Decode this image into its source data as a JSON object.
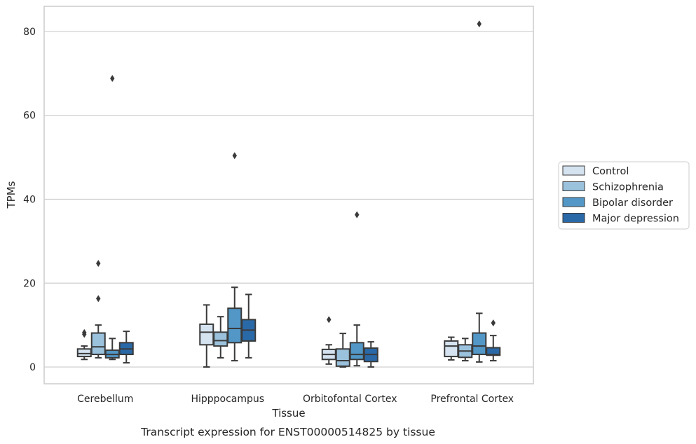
{
  "chart_data": {
    "type": "box",
    "xlabel": "Tissue",
    "ylabel": "TPMs",
    "caption": "Transcript expression for ENST00000514825 by tissue",
    "ylim": [
      -4,
      86
    ],
    "yticks": [
      0,
      20,
      40,
      60,
      80
    ],
    "grid": "horizontal",
    "legend_position": "right",
    "categories": [
      "Cerebellum",
      "Hipppocampus",
      "Orbitofontal Cortex",
      "Prefrontal Cortex"
    ],
    "series": [
      {
        "name": "Control",
        "color": "#d5e3f0",
        "boxes": [
          {
            "whislo": 1.8,
            "q1": 2.5,
            "med": 3.2,
            "q3": 4.3,
            "whishi": 5.0,
            "fliers": [
              7.8,
              8.2
            ]
          },
          {
            "whislo": 0.0,
            "q1": 5.3,
            "med": 8.3,
            "q3": 10.2,
            "whishi": 14.8,
            "fliers": []
          },
          {
            "whislo": 0.7,
            "q1": 1.8,
            "med": 3.0,
            "q3": 4.2,
            "whishi": 5.3,
            "fliers": [
              11.3
            ]
          },
          {
            "whislo": 1.7,
            "q1": 2.5,
            "med": 5.0,
            "q3": 6.2,
            "whishi": 7.1,
            "fliers": []
          }
        ]
      },
      {
        "name": "Schizophrenia",
        "color": "#9bc2dd",
        "boxes": [
          {
            "whislo": 2.2,
            "q1": 3.0,
            "med": 4.8,
            "q3": 8.1,
            "whishi": 10.0,
            "fliers": [
              16.3,
              24.7
            ]
          },
          {
            "whislo": 2.2,
            "q1": 5.0,
            "med": 6.3,
            "q3": 8.3,
            "whishi": 12.0,
            "fliers": []
          },
          {
            "whislo": 0.0,
            "q1": 0.2,
            "med": 1.5,
            "q3": 4.3,
            "whishi": 8.0,
            "fliers": []
          },
          {
            "whislo": 1.5,
            "q1": 2.3,
            "med": 3.8,
            "q3": 5.3,
            "whishi": 6.8,
            "fliers": []
          }
        ]
      },
      {
        "name": "Bipolar disorder",
        "color": "#5297c6",
        "boxes": [
          {
            "whislo": 1.8,
            "q1": 2.2,
            "med": 3.0,
            "q3": 4.0,
            "whishi": 6.8,
            "fliers": [
              68.8
            ]
          },
          {
            "whislo": 1.5,
            "q1": 5.8,
            "med": 9.2,
            "q3": 14.0,
            "whishi": 19.0,
            "fliers": [
              50.4
            ]
          },
          {
            "whislo": 0.3,
            "q1": 1.8,
            "med": 3.0,
            "q3": 5.8,
            "whishi": 10.0,
            "fliers": [
              36.3
            ]
          },
          {
            "whislo": 1.2,
            "q1": 3.0,
            "med": 5.0,
            "q3": 8.1,
            "whishi": 12.8,
            "fliers": [
              81.8
            ]
          }
        ]
      },
      {
        "name": "Major depression",
        "color": "#2a69a8",
        "boxes": [
          {
            "whislo": 1.0,
            "q1": 3.0,
            "med": 4.3,
            "q3": 5.8,
            "whishi": 8.5,
            "fliers": []
          },
          {
            "whislo": 2.2,
            "q1": 6.2,
            "med": 8.8,
            "q3": 11.3,
            "whishi": 17.3,
            "fliers": []
          },
          {
            "whislo": 0.0,
            "q1": 1.3,
            "med": 3.0,
            "q3": 4.5,
            "whishi": 6.0,
            "fliers": []
          },
          {
            "whislo": 1.5,
            "q1": 2.8,
            "med": 3.0,
            "q3": 4.6,
            "whishi": 7.5,
            "fliers": [
              10.5
            ]
          }
        ]
      }
    ]
  }
}
